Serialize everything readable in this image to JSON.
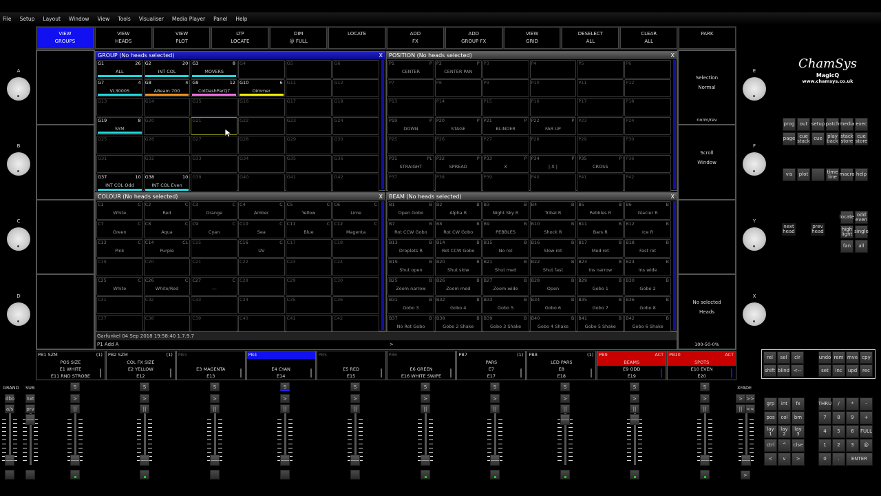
{
  "menu": [
    "File",
    "Setup",
    "Layout",
    "Window",
    "View",
    "Tools",
    "Visualiser",
    "Media Player",
    "Panel",
    "Help"
  ],
  "soft_buttons": [
    {
      "l1": "VIEW",
      "l2": "GROUPS",
      "active": true
    },
    {
      "l1": "VIEW",
      "l2": "HEADS"
    },
    {
      "l1": "VIEW",
      "l2": "PLOT"
    },
    {
      "l1": "LTP",
      "l2": "LOCATE"
    },
    {
      "l1": "DIM",
      "l2": "@ FULL"
    },
    {
      "l1": "LOCATE",
      "l2": ""
    },
    {
      "l1": "ADD",
      "l2": "FX"
    },
    {
      "l1": "ADD",
      "l2": "GROUP FX"
    },
    {
      "l1": "VIEW",
      "l2": "GRID"
    },
    {
      "l1": "DESELECT",
      "l2": "ALL"
    },
    {
      "l1": "CLEAR",
      "l2": "ALL"
    },
    {
      "l1": "PARK",
      "l2": ""
    }
  ],
  "encoders_left": [
    "A",
    "B",
    "C",
    "D"
  ],
  "encoders_right": [
    "E",
    "F",
    "Y",
    "X"
  ],
  "right_encoder_panels": [
    {
      "l1": "Selection",
      "l2": "Normal",
      "foot": "norm/rev"
    },
    {
      "l1": "Scroll",
      "l2": "Window",
      "foot": ""
    },
    {
      "l1": "",
      "l2": "",
      "foot": ""
    },
    {
      "l1": "No selected",
      "l2": "Heads",
      "foot": "100-50-0%"
    }
  ],
  "windows": {
    "group": {
      "title": "GROUP (No heads selected)",
      "close": "X"
    },
    "position": {
      "title": "POSITION (No heads selected)",
      "close": "X"
    },
    "colour": {
      "title": "COLOUR (No heads selected)",
      "close": "X"
    },
    "beam": {
      "title": "BEAM (No heads selected)",
      "close": "X"
    }
  },
  "group_cells": [
    {
      "id": "G1",
      "count": "26",
      "name": "ALL",
      "color": "#22d8e0"
    },
    {
      "id": "G2",
      "count": "20",
      "name": "INT COL",
      "color": "#22d8e0"
    },
    {
      "id": "G3",
      "count": "8",
      "name": "MOVERS",
      "color": "#22d8e0"
    },
    {
      "id": "G4"
    },
    {
      "id": "G5"
    },
    {
      "id": "G6"
    },
    {
      "id": "G7",
      "count": "4",
      "name": "VL3000S",
      "color": "#22d8e0"
    },
    {
      "id": "G8",
      "count": "4",
      "name": "ABeam 700",
      "color": "#f09020"
    },
    {
      "id": "G9",
      "count": "12",
      "name": "ColDashParQ7",
      "color": "#f070e0"
    },
    {
      "id": "G10",
      "count": "6",
      "name": "Dimmer",
      "color": "#f0f000"
    },
    {
      "id": "G11"
    },
    {
      "id": "G12"
    },
    {
      "id": "G13"
    },
    {
      "id": "G14"
    },
    {
      "id": "G15"
    },
    {
      "id": "G16"
    },
    {
      "id": "G17"
    },
    {
      "id": "G18"
    },
    {
      "id": "G19",
      "count": "8",
      "name": "SYM",
      "color": "#22d8e0"
    },
    {
      "id": "G20"
    },
    {
      "id": "G21",
      "selected": true
    },
    {
      "id": "G22"
    },
    {
      "id": "G23"
    },
    {
      "id": "G24"
    },
    {
      "id": "G25"
    },
    {
      "id": "G26"
    },
    {
      "id": "G27"
    },
    {
      "id": "G28"
    },
    {
      "id": "G29"
    },
    {
      "id": "G30"
    },
    {
      "id": "G31"
    },
    {
      "id": "G32"
    },
    {
      "id": "G33"
    },
    {
      "id": "G34"
    },
    {
      "id": "G35"
    },
    {
      "id": "G36"
    },
    {
      "id": "G37",
      "count": "10",
      "name": "INT COL Odd",
      "color": "#22d8e0"
    },
    {
      "id": "G38",
      "count": "10",
      "name": "INT COL Even",
      "color": "#22d8e0"
    },
    {
      "id": "G39"
    },
    {
      "id": "G40"
    },
    {
      "id": "G41"
    },
    {
      "id": "G42"
    }
  ],
  "position_cells": [
    {
      "id": "P1",
      "tag": "P",
      "name": "CENTER"
    },
    {
      "id": "P2",
      "tag": "P",
      "name": "CENTER PAN"
    },
    {
      "id": "P3"
    },
    {
      "id": "P4"
    },
    {
      "id": "P5"
    },
    {
      "id": "P6"
    },
    {
      "id": "P7"
    },
    {
      "id": "P8"
    },
    {
      "id": "P9"
    },
    {
      "id": "P10"
    },
    {
      "id": "P11"
    },
    {
      "id": "P12"
    },
    {
      "id": "P13"
    },
    {
      "id": "P14"
    },
    {
      "id": "P15"
    },
    {
      "id": "P16"
    },
    {
      "id": "P17"
    },
    {
      "id": "P18"
    },
    {
      "id": "P19",
      "tag": "P",
      "name": "DOWN"
    },
    {
      "id": "P20",
      "tag": "P",
      "name": "STAGE"
    },
    {
      "id": "P21",
      "tag": "P",
      "name": "BLINDER"
    },
    {
      "id": "P22",
      "tag": "P",
      "name": "FAR UP"
    },
    {
      "id": "P23"
    },
    {
      "id": "P24"
    },
    {
      "id": "P25"
    },
    {
      "id": "P26"
    },
    {
      "id": "P27"
    },
    {
      "id": "P28"
    },
    {
      "id": "P29"
    },
    {
      "id": "P30"
    },
    {
      "id": "P31",
      "tag": "PL",
      "name": "STRAIGHT"
    },
    {
      "id": "P32",
      "tag": "P",
      "name": "SPREAD"
    },
    {
      "id": "P33",
      "tag": "P",
      "name": "X"
    },
    {
      "id": "P34",
      "tag": "P",
      "name": "| X |"
    },
    {
      "id": "P35",
      "tag": "P",
      "name": "CROSS"
    },
    {
      "id": "P36"
    },
    {
      "id": "P37"
    },
    {
      "id": "P38"
    },
    {
      "id": "P39"
    },
    {
      "id": "P40"
    },
    {
      "id": "P41"
    },
    {
      "id": "P42"
    }
  ],
  "colour_cells": [
    {
      "id": "C1",
      "tag": "C",
      "name": "White"
    },
    {
      "id": "C2",
      "tag": "C",
      "name": "Red"
    },
    {
      "id": "C3",
      "tag": "C",
      "name": "Orange"
    },
    {
      "id": "C4",
      "tag": "C",
      "name": "Amber"
    },
    {
      "id": "C5",
      "tag": "C",
      "name": "Yellow"
    },
    {
      "id": "C6",
      "tag": "C",
      "name": "Lime"
    },
    {
      "id": "C7",
      "tag": "C",
      "name": "Green"
    },
    {
      "id": "C8",
      "tag": "C",
      "name": "Aqua"
    },
    {
      "id": "C9",
      "tag": "C",
      "name": "Cyan"
    },
    {
      "id": "C10",
      "tag": "C",
      "name": "Sea"
    },
    {
      "id": "C11",
      "tag": "C",
      "name": "Blue"
    },
    {
      "id": "C12",
      "tag": "C",
      "name": "Magenta"
    },
    {
      "id": "C13",
      "tag": "C",
      "name": "Pink"
    },
    {
      "id": "C14",
      "tag": "CL",
      "name": "Purple"
    },
    {
      "id": "C15"
    },
    {
      "id": "C16",
      "tag": "C",
      "name": "UV"
    },
    {
      "id": "C17"
    },
    {
      "id": "C18"
    },
    {
      "id": "C19"
    },
    {
      "id": "C20"
    },
    {
      "id": "C21"
    },
    {
      "id": "C22"
    },
    {
      "id": "C23"
    },
    {
      "id": "C24"
    },
    {
      "id": "C25",
      "tag": "C",
      "name": "White"
    },
    {
      "id": "C26",
      "tag": "C",
      "name": "White/Red"
    },
    {
      "id": "C27",
      "tag": "C",
      "name": "---"
    },
    {
      "id": "C28"
    },
    {
      "id": "C29"
    },
    {
      "id": "C30"
    },
    {
      "id": "C31"
    },
    {
      "id": "C32"
    },
    {
      "id": "C33"
    },
    {
      "id": "C34"
    },
    {
      "id": "C35"
    },
    {
      "id": "C36"
    },
    {
      "id": "C37"
    },
    {
      "id": "C38"
    },
    {
      "id": "C39"
    },
    {
      "id": "C40"
    },
    {
      "id": "C41"
    },
    {
      "id": "C42"
    }
  ],
  "beam_cells": [
    {
      "id": "B1",
      "tag": "B",
      "name": "Open Gobo"
    },
    {
      "id": "B2",
      "tag": "B",
      "name": "Alpha R"
    },
    {
      "id": "B3",
      "tag": "B",
      "name": "Night Sky R"
    },
    {
      "id": "B4",
      "tag": "B",
      "name": "Tribal R"
    },
    {
      "id": "B5",
      "tag": "B",
      "name": "Pebbles R"
    },
    {
      "id": "B6",
      "tag": "B",
      "name": "Glacier R"
    },
    {
      "id": "B7",
      "tag": "B",
      "name": "Rot CCW Gobo"
    },
    {
      "id": "B8",
      "tag": "B",
      "name": "Rot CW Gobo"
    },
    {
      "id": "B9",
      "tag": "B",
      "name": "PEBBLES"
    },
    {
      "id": "B10",
      "tag": "B",
      "name": "Shock R"
    },
    {
      "id": "B11",
      "tag": "B",
      "name": "Bars R"
    },
    {
      "id": "B12",
      "tag": "B",
      "name": "Ice R"
    },
    {
      "id": "B13",
      "tag": "B",
      "name": "Droplets R"
    },
    {
      "id": "B14",
      "tag": "B",
      "name": "Rot CCW Gobo"
    },
    {
      "id": "B15",
      "tag": "B",
      "name": "No rot"
    },
    {
      "id": "B16",
      "tag": "B",
      "name": "Slow rot"
    },
    {
      "id": "B17",
      "tag": "B",
      "name": "Med rot"
    },
    {
      "id": "B18",
      "tag": "B",
      "name": "Fast rot"
    },
    {
      "id": "B19",
      "tag": "B",
      "name": "Shut open"
    },
    {
      "id": "B20",
      "tag": "B",
      "name": "Shut slow"
    },
    {
      "id": "B21",
      "tag": "B",
      "name": "Shut med"
    },
    {
      "id": "B22",
      "tag": "B",
      "name": "Shut fast"
    },
    {
      "id": "B23",
      "tag": "B",
      "name": "Ins narrow"
    },
    {
      "id": "B24",
      "tag": "B",
      "name": "Ins wide"
    },
    {
      "id": "B25",
      "tag": "B",
      "name": "Zoom narrow"
    },
    {
      "id": "B26",
      "tag": "B",
      "name": "Zoom med"
    },
    {
      "id": "B27",
      "tag": "B",
      "name": "Zoom wide"
    },
    {
      "id": "B28",
      "tag": "B",
      "name": "Open"
    },
    {
      "id": "B29",
      "tag": "B",
      "name": "Gobo 1"
    },
    {
      "id": "B30",
      "tag": "B",
      "name": "Gobo 2"
    },
    {
      "id": "B31",
      "tag": "B",
      "name": "Gobo 3"
    },
    {
      "id": "B32",
      "tag": "B",
      "name": "Gobo 4"
    },
    {
      "id": "B33",
      "tag": "B",
      "name": "Gobo 5"
    },
    {
      "id": "B34",
      "tag": "B",
      "name": "Gobo 6"
    },
    {
      "id": "B35",
      "tag": "B",
      "name": "Gobo 7"
    },
    {
      "id": "B36",
      "tag": "B",
      "name": "Gobo 8"
    },
    {
      "id": "B37",
      "tag": "B",
      "name": "No Rot Gobo"
    },
    {
      "id": "B38",
      "tag": "B",
      "name": "Gobo 2 Shake"
    },
    {
      "id": "B39",
      "tag": "B",
      "name": "Gobo 3 Shake"
    },
    {
      "id": "B40",
      "tag": "B",
      "name": "Gobo 4 Shake"
    },
    {
      "id": "B41",
      "tag": "B",
      "name": "Gobo 5 Shake"
    },
    {
      "id": "B42",
      "tag": "B",
      "name": "Gobo 6 Shake"
    }
  ],
  "status": {
    "line1": "Garfunkel 04 Sep 2018 19:58:40 1.7.9.7",
    "line2": "P1  Add A",
    "prompt": ">"
  },
  "playbacks": [
    {
      "head": "PB1 SZM",
      "right": "(1)",
      "lines": [
        "POS SIZE",
        "E1 WHITE",
        "E11 RND STROBE"
      ]
    },
    {
      "head": "PB2 SZM",
      "right": "(1)",
      "lines": [
        "COL FX SIZE",
        "E2 YELLOW",
        "E12"
      ]
    },
    {
      "head": "PB3",
      "right": "",
      "lines": [
        "",
        "E3 MAGENTA",
        "E13"
      ],
      "off": true
    },
    {
      "head": "PB4",
      "right": "",
      "lines": [
        "",
        "E4 CYAN",
        "E14"
      ],
      "selected": true
    },
    {
      "head": "PB5",
      "right": "",
      "lines": [
        "",
        "E5 RED",
        "E15"
      ],
      "off": true
    },
    {
      "head": "PB6",
      "right": "",
      "lines": [
        "",
        "E6 GREEN",
        "E16 WHITE SWIPE"
      ],
      "off": true
    },
    {
      "head": "PB7",
      "right": "(1)",
      "lines": [
        "PARS",
        "E7",
        "E17"
      ]
    },
    {
      "head": "PB8",
      "right": "(1)",
      "lines": [
        "LED PARS",
        "E8",
        "E18"
      ]
    },
    {
      "head": "PB9",
      "right": "ACT",
      "lines": [
        "BEAMS",
        "E9 ODD",
        "E19"
      ],
      "active": true
    },
    {
      "head": "PB10",
      "right": "ACT",
      "lines": [
        "SPOTS",
        "E10 EVEN",
        "E20"
      ],
      "active": true
    }
  ],
  "master": {
    "grand_label": "GRAND",
    "sub_label": "SUB",
    "dbo": "dbo",
    "as": "a/s",
    "nxt": "nxt",
    "prv": "prv",
    "xfade_label": "XFADE"
  },
  "fader_buttons": {
    "s": "S",
    "go": ">",
    "pause": "||"
  },
  "fader_leds": [
    true,
    true,
    false,
    false,
    false,
    true,
    true,
    true,
    true,
    true
  ],
  "fader_levels": [
    0,
    0,
    0,
    0,
    0,
    0,
    0,
    100,
    100,
    0
  ],
  "logo": {
    "brand": "ChamSys",
    "product": "MagicQ",
    "url": "www.chamsys.co.uk"
  },
  "keys_top": [
    [
      "prog",
      "out",
      "setup",
      "patch",
      "media",
      "exec"
    ],
    [
      "page",
      "cue stack",
      "cue",
      "play back",
      "stack store",
      "cue store"
    ]
  ],
  "keys_mid": [
    "vis",
    "plot",
    "",
    "time line",
    "macro",
    "help"
  ],
  "keys_head": {
    "next": "next head",
    "prev": "prev head",
    "grid": [
      [
        "locate",
        "odd even"
      ],
      [
        "high light",
        "single"
      ],
      [
        "fan",
        "all"
      ]
    ]
  },
  "keys_edit_left": [
    [
      "rel",
      "sel",
      "clr"
    ],
    [
      "shift",
      "blind",
      "<--"
    ]
  ],
  "keys_edit_right": [
    [
      "undo",
      "rem",
      "mve",
      "cpy"
    ],
    [
      "set",
      "inc",
      "upd",
      "rec"
    ]
  ],
  "keys_sel": [
    [
      "grp",
      "int",
      "fx"
    ],
    [
      "pos",
      "col",
      "bm"
    ],
    [
      "lay 1",
      "lay 2",
      "lay 3"
    ],
    [
      "ctrl",
      "^",
      "clse"
    ],
    [
      "<",
      "v",
      ">"
    ]
  ],
  "keys_num": [
    [
      "THRU",
      "/",
      "*",
      "-"
    ],
    [
      "7",
      "8",
      "9",
      "+"
    ],
    [
      "4",
      "5",
      "6",
      "FULL"
    ],
    [
      "1",
      "2",
      "3",
      "@"
    ],
    [
      "0",
      "."
    ]
  ],
  "keys_enter": "ENTER",
  "xfade_buttons": [
    ">",
    ">>",
    "||",
    "<<"
  ],
  "xfade_go": ">"
}
